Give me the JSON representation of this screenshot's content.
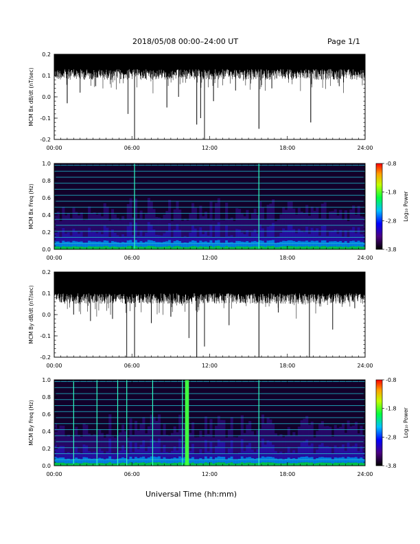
{
  "header": {
    "title": "2018/05/08   00:00–24:00 UT",
    "page": "Page 1/1"
  },
  "footer": {
    "xlabel": "Universal Time (hh:mm)"
  },
  "chart_data": [
    {
      "type": "line",
      "name": "bx-timeseries",
      "ylabel": "MCM Bx dB/dt (nT/sec)",
      "xlim": [
        0,
        24
      ],
      "ylim": [
        -0.2,
        0.2
      ],
      "xticks": [
        0,
        6,
        12,
        18,
        24
      ],
      "xtick_labels": [
        "00:00",
        "06:00",
        "12:00",
        "18:00",
        "24:00"
      ],
      "yticks": [
        -0.2,
        -0.1,
        0.0,
        0.1,
        0.2
      ],
      "ytick_labels": [
        "-0.2",
        "-0.1",
        "0.0",
        "0.1",
        "0.2"
      ],
      "envelope_top": 0.2,
      "envelope_bottom_baseline": 0.13,
      "spikes": [
        {
          "t": 1.0,
          "v": -0.03
        },
        {
          "t": 2.0,
          "v": 0.02
        },
        {
          "t": 3.2,
          "v": 0.05
        },
        {
          "t": 5.7,
          "v": -0.08
        },
        {
          "t": 6.2,
          "v": -0.2
        },
        {
          "t": 8.7,
          "v": -0.05
        },
        {
          "t": 9.6,
          "v": 0.0
        },
        {
          "t": 11.0,
          "v": -0.13
        },
        {
          "t": 11.3,
          "v": -0.1
        },
        {
          "t": 11.6,
          "v": -0.2
        },
        {
          "t": 12.3,
          "v": -0.02
        },
        {
          "t": 14.0,
          "v": 0.03
        },
        {
          "t": 15.8,
          "v": -0.15
        },
        {
          "t": 16.8,
          "v": 0.04
        },
        {
          "t": 19.8,
          "v": -0.12
        },
        {
          "t": 22.0,
          "v": 0.05
        }
      ]
    },
    {
      "type": "heatmap",
      "name": "bx-spectrogram",
      "ylabel": "MCM Bx Freq (Hz)",
      "xlim": [
        0,
        24
      ],
      "ylim": [
        0,
        1.0
      ],
      "xticks": [
        0,
        6,
        12,
        18,
        24
      ],
      "xtick_labels": [
        "00:00",
        "06:00",
        "12:00",
        "18:00",
        "24:00"
      ],
      "yticks": [
        0.0,
        0.2,
        0.4,
        0.6,
        0.8,
        1.0
      ],
      "ytick_labels": [
        "0.0",
        "0.2",
        "0.4",
        "0.6",
        "0.8",
        "1.0"
      ],
      "harmonic_lines_hz": [
        0.07,
        0.14,
        0.21,
        0.28,
        0.35,
        0.42,
        0.49,
        0.56,
        0.63,
        0.7,
        0.77,
        0.84,
        0.91,
        0.98
      ],
      "vertical_events_hr": [
        6.2,
        15.8
      ],
      "colorbar": {
        "label": "Log₁₀ Power",
        "range": [
          -3.8,
          -0.8
        ],
        "ticks": [
          -0.8,
          -1.8,
          -2.8,
          -3.8
        ],
        "tick_labels": [
          "-0.8",
          "-1.8",
          "-2.8",
          "-3.8"
        ]
      }
    },
    {
      "type": "line",
      "name": "by-timeseries",
      "ylabel": "MCM By dB/dt (nT/sec)",
      "xlim": [
        0,
        24
      ],
      "ylim": [
        -0.2,
        0.2
      ],
      "xticks": [
        0,
        6,
        12,
        18,
        24
      ],
      "xtick_labels": [
        "00:00",
        "06:00",
        "12:00",
        "18:00",
        "24:00"
      ],
      "yticks": [
        -0.2,
        -0.1,
        0.0,
        0.1,
        0.2
      ],
      "ytick_labels": [
        "-0.2",
        "-0.1",
        "0.0",
        "0.1",
        "0.2"
      ],
      "envelope_top": 0.2,
      "envelope_bottom_baseline": 0.1,
      "spikes": [
        {
          "t": 1.5,
          "v": 0.0
        },
        {
          "t": 2.8,
          "v": -0.03
        },
        {
          "t": 4.5,
          "v": -0.02
        },
        {
          "t": 5.6,
          "v": -0.2
        },
        {
          "t": 6.2,
          "v": -0.21
        },
        {
          "t": 7.5,
          "v": -0.04
        },
        {
          "t": 9.0,
          "v": -0.01
        },
        {
          "t": 10.4,
          "v": -0.11
        },
        {
          "t": 11.0,
          "v": -0.21
        },
        {
          "t": 11.6,
          "v": -0.15
        },
        {
          "t": 13.5,
          "v": -0.05
        },
        {
          "t": 15.8,
          "v": -0.21
        },
        {
          "t": 17.3,
          "v": 0.01
        },
        {
          "t": 19.7,
          "v": -0.21
        },
        {
          "t": 21.5,
          "v": -0.07
        },
        {
          "t": 23.2,
          "v": 0.03
        }
      ]
    },
    {
      "type": "heatmap",
      "name": "by-spectrogram",
      "ylabel": "MCM By Freq (Hz)",
      "xlim": [
        0,
        24
      ],
      "ylim": [
        0,
        1.0
      ],
      "xticks": [
        0,
        6,
        12,
        18,
        24
      ],
      "xtick_labels": [
        "00:00",
        "06:00",
        "12:00",
        "18:00",
        "24:00"
      ],
      "yticks": [
        0.0,
        0.2,
        0.4,
        0.6,
        0.8,
        1.0
      ],
      "ytick_labels": [
        "0.0",
        "0.2",
        "0.4",
        "0.6",
        "0.8",
        "1.0"
      ],
      "harmonic_lines_hz": [
        0.07,
        0.14,
        0.21,
        0.28,
        0.35,
        0.42,
        0.49,
        0.56,
        0.63,
        0.7,
        0.77,
        0.84,
        0.91,
        0.98
      ],
      "vertical_events_hr": [
        1.5,
        3.3,
        4.9,
        5.6,
        7.6,
        9.9,
        10.3,
        15.8
      ],
      "broadband_event_hr": [
        10.1,
        10.4
      ],
      "colorbar": {
        "label": "Log₁₀ Power",
        "range": [
          -3.8,
          -0.8
        ],
        "ticks": [
          -0.8,
          -1.8,
          -2.8,
          -3.8
        ],
        "tick_labels": [
          "-0.8",
          "-1.8",
          "-2.8",
          "-3.8"
        ]
      }
    }
  ]
}
